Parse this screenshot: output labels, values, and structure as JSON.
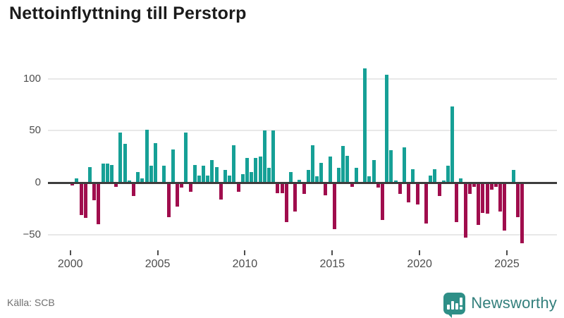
{
  "header": {
    "title": "Nettoinflyttning till Perstorp"
  },
  "footer": {
    "source": "Källa: SCB",
    "brand": "Newsworthy"
  },
  "colors": {
    "positive": "#16a096",
    "negative": "#a00d4d",
    "axis": "#3d3d3d",
    "grid": "#e8e8e8",
    "tick_label": "#4d4d4d",
    "source_text": "#707070",
    "brand_teal": "#2e8f87",
    "brand_text": "#337f7c"
  },
  "chart_data": {
    "type": "bar",
    "title": "Nettoinflyttning till Perstorp",
    "xlabel": "",
    "ylabel": "",
    "frequency": "quarterly",
    "x_range": [
      "2000 Q1",
      "2025 Q4"
    ],
    "ylim": [
      -65,
      120
    ],
    "grid": "horizontal",
    "y_ticks": [
      {
        "label": "100",
        "value": 100
      },
      {
        "label": "50",
        "value": 50
      },
      {
        "label": "0",
        "value": 0
      },
      {
        "label": "−50",
        "value": -50
      }
    ],
    "x_ticks": [
      {
        "label": "2000",
        "year": 2000
      },
      {
        "label": "2005",
        "year": 2005
      },
      {
        "label": "2010",
        "year": 2010
      },
      {
        "label": "2015",
        "year": 2015
      },
      {
        "label": "2020",
        "year": 2020
      },
      {
        "label": "2025",
        "year": 2025
      }
    ],
    "categories": [
      "2000 Q1",
      "2000 Q2",
      "2000 Q3",
      "2000 Q4",
      "2001 Q1",
      "2001 Q2",
      "2001 Q3",
      "2001 Q4",
      "2002 Q1",
      "2002 Q2",
      "2002 Q3",
      "2002 Q4",
      "2003 Q1",
      "2003 Q2",
      "2003 Q3",
      "2003 Q4",
      "2004 Q1",
      "2004 Q2",
      "2004 Q3",
      "2004 Q4",
      "2005 Q1",
      "2005 Q2",
      "2005 Q3",
      "2005 Q4",
      "2006 Q1",
      "2006 Q2",
      "2006 Q3",
      "2006 Q4",
      "2007 Q1",
      "2007 Q2",
      "2007 Q3",
      "2007 Q4",
      "2008 Q1",
      "2008 Q2",
      "2008 Q3",
      "2008 Q4",
      "2009 Q1",
      "2009 Q2",
      "2009 Q3",
      "2009 Q4",
      "2010 Q1",
      "2010 Q2",
      "2010 Q3",
      "2010 Q4",
      "2011 Q1",
      "2011 Q2",
      "2011 Q3",
      "2011 Q4",
      "2012 Q1",
      "2012 Q2",
      "2012 Q3",
      "2012 Q4",
      "2013 Q1",
      "2013 Q2",
      "2013 Q3",
      "2013 Q4",
      "2014 Q1",
      "2014 Q2",
      "2014 Q3",
      "2014 Q4",
      "2015 Q1",
      "2015 Q2",
      "2015 Q3",
      "2015 Q4",
      "2016 Q1",
      "2016 Q2",
      "2016 Q3",
      "2016 Q4",
      "2017 Q1",
      "2017 Q2",
      "2017 Q3",
      "2017 Q4",
      "2018 Q1",
      "2018 Q2",
      "2018 Q3",
      "2018 Q4",
      "2019 Q1",
      "2019 Q2",
      "2019 Q3",
      "2019 Q4",
      "2020 Q1",
      "2020 Q2",
      "2020 Q3",
      "2020 Q4",
      "2021 Q1",
      "2021 Q2",
      "2021 Q3",
      "2021 Q4",
      "2022 Q1",
      "2022 Q2",
      "2022 Q3",
      "2022 Q4",
      "2023 Q1",
      "2023 Q2",
      "2023 Q3",
      "2023 Q4",
      "2024 Q1",
      "2024 Q2",
      "2024 Q3",
      "2024 Q4",
      "2025 Q1",
      "2025 Q2",
      "2025 Q3",
      "2025 Q4"
    ],
    "values": [
      -3,
      4,
      -31,
      -34,
      15,
      -17,
      -40,
      18,
      18,
      17,
      -4,
      48,
      37,
      2,
      -13,
      10,
      4,
      51,
      16,
      38,
      0,
      16,
      -33,
      32,
      -23,
      -5,
      48,
      -9,
      17,
      7,
      16,
      7,
      22,
      15,
      -16,
      12,
      7,
      36,
      -9,
      8,
      24,
      10,
      24,
      25,
      50,
      14,
      50,
      -10,
      -10,
      -38,
      10,
      -28,
      3,
      -11,
      12,
      36,
      6,
      19,
      -12,
      25,
      -45,
      14,
      35,
      26,
      -4,
      14,
      0,
      110,
      6,
      22,
      -5,
      -36,
      104,
      31,
      2,
      -11,
      34,
      -19,
      13,
      -21,
      0,
      -39,
      7,
      13,
      -13,
      2,
      16,
      73,
      -38,
      4,
      -53,
      -11,
      -4,
      -41,
      -29,
      -30,
      -7,
      -4,
      -28,
      -46,
      0,
      12,
      -33,
      -58
    ]
  }
}
